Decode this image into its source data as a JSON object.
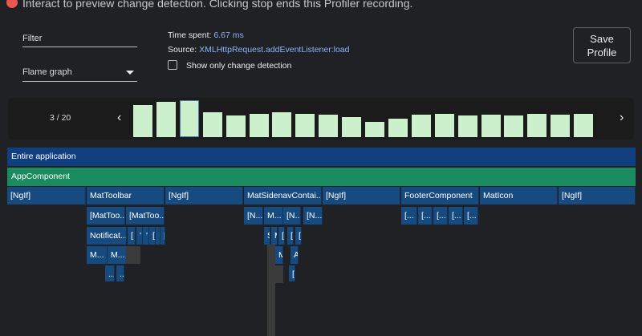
{
  "header": {
    "message": "Interact to preview change detection. Clicking stop ends this Profiler recording."
  },
  "controls": {
    "filter_label": "Filter",
    "view_label": "Flame graph",
    "time_spent_label": "Time spent:",
    "time_spent_value": "6.67 ms",
    "source_label": "Source:",
    "source_value": "XMLHttpRequest.addEventListener:load",
    "checkbox_label": "Show only change detection",
    "save_line1": "Save",
    "save_line2": "Profile"
  },
  "frame_selector": {
    "counter": "3 / 20",
    "prev_icon": "chevron-left-icon",
    "next_icon": "chevron-right-icon",
    "selected_index": 2,
    "bar_heights": [
      0.83,
      0.92,
      0.95,
      0.65,
      0.56,
      0.6,
      0.65,
      0.6,
      0.58,
      0.52,
      0.39,
      0.48,
      0.58,
      0.6,
      0.56,
      0.58,
      0.56,
      0.61,
      0.59,
      0.6
    ]
  },
  "flame": {
    "root": "Entire application",
    "app": "AppComponent",
    "level2": [
      "[NgIf]",
      "MatToolbar",
      "[NgIf]",
      "MatSidenavContai...",
      "[NgIf]",
      "FooterComponent",
      "MatIcon",
      "[NgIf]"
    ],
    "level3": [
      "[MatToo...",
      "[MatToo...",
      "[N...",
      "M...",
      "[N...",
      "[N...",
      "[...",
      "[...",
      "[...",
      "[...",
      "[..."
    ],
    "level4": [
      "Notificat...",
      "[",
      "'",
      "'",
      "[",
      "I",
      "[",
      "S",
      "M",
      "[",
      "[",
      "["
    ],
    "level5": [
      "M...",
      "M...",
      "M",
      "A"
    ],
    "level6": [
      "...",
      "...",
      "["
    ]
  },
  "colors": {
    "root": "#103f80",
    "app": "#1a8a5f",
    "node": "#174a7e",
    "bar": "#ccf0cc",
    "accent_text": "#8ab4f8"
  }
}
